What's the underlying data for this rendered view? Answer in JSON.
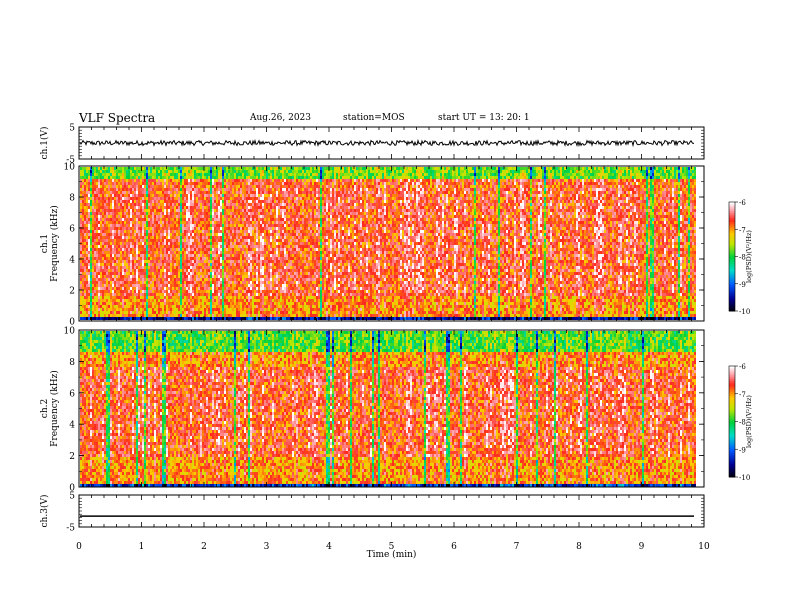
{
  "header": {
    "title": "VLF Spectra",
    "date": "Aug.26, 2023",
    "station": "station=MOS",
    "start_ut": "start  UT =   13: 20: 1"
  },
  "chart_data": [
    {
      "type": "line",
      "name": "ch.1 waveform",
      "ylabel": "ch.1(V)",
      "ylim": [
        -5,
        5
      ],
      "yticks": [
        "5",
        "-5"
      ],
      "xlim": [
        0,
        10
      ],
      "series": [
        {
          "level": 0,
          "noise": 0.25,
          "x_end": 9.85
        }
      ]
    },
    {
      "type": "heatmap",
      "name": "ch.1 spectrogram",
      "ylabel": "ch.1 Frequency (kHz)",
      "ylabel_lines": [
        "ch.1",
        "Frequency (kHz)"
      ],
      "ylim": [
        0,
        10
      ],
      "yticks": [
        "0",
        "2",
        "4",
        "6",
        "8",
        "10"
      ],
      "xlim": [
        0,
        9.85
      ],
      "colorbar": {
        "label": "log(PSD)(V²/Hz)",
        "min": -10,
        "max": -6,
        "ticks": [
          "-6",
          "-7",
          "-8",
          "-9",
          "-10"
        ]
      },
      "bands": [
        {
          "f": [
            0,
            0.3
          ],
          "level": -9.5
        },
        {
          "f": [
            0.3,
            1.7
          ],
          "level": -7.0
        },
        {
          "f": [
            1.7,
            8.6
          ],
          "level": -6.7
        },
        {
          "f": [
            8.6,
            9.2
          ],
          "level": -6.8
        },
        {
          "f": [
            9.2,
            10
          ],
          "level": -7.8
        }
      ]
    },
    {
      "type": "heatmap",
      "name": "ch.2 spectrogram",
      "ylabel": "ch.2 Frequency (kHz)",
      "ylabel_lines": [
        "ch.2",
        "Frequency (kHz)"
      ],
      "ylim": [
        0,
        10
      ],
      "yticks": [
        "0",
        "2",
        "4",
        "6",
        "8",
        "10"
      ],
      "xlim": [
        0,
        9.85
      ],
      "colorbar": {
        "label": "log(PSD)(V²/Hz)",
        "min": -10,
        "max": -6,
        "ticks": [
          "-6",
          "-7",
          "-8",
          "-9",
          "-10"
        ]
      },
      "bands": [
        {
          "f": [
            0,
            0.3
          ],
          "level": -9.3
        },
        {
          "f": [
            0.3,
            2.0
          ],
          "level": -7.0
        },
        {
          "f": [
            2.0,
            7.8
          ],
          "level": -6.7
        },
        {
          "f": [
            7.8,
            8.6
          ],
          "level": -7.0
        },
        {
          "f": [
            8.6,
            10
          ],
          "level": -7.9
        }
      ]
    },
    {
      "type": "line",
      "name": "ch.3 waveform",
      "ylabel": "ch.3(V)",
      "ylim": [
        -5,
        5
      ],
      "yticks": [
        "5",
        "-5"
      ],
      "xlim": [
        0,
        10
      ],
      "xlabel": "Time  (min)",
      "xticks": [
        "0",
        "1",
        "2",
        "3",
        "4",
        "5",
        "6",
        "7",
        "8",
        "9",
        "10"
      ],
      "series": [
        {
          "level": -1.6,
          "noise": 0,
          "x_end": 9.85
        }
      ]
    }
  ]
}
